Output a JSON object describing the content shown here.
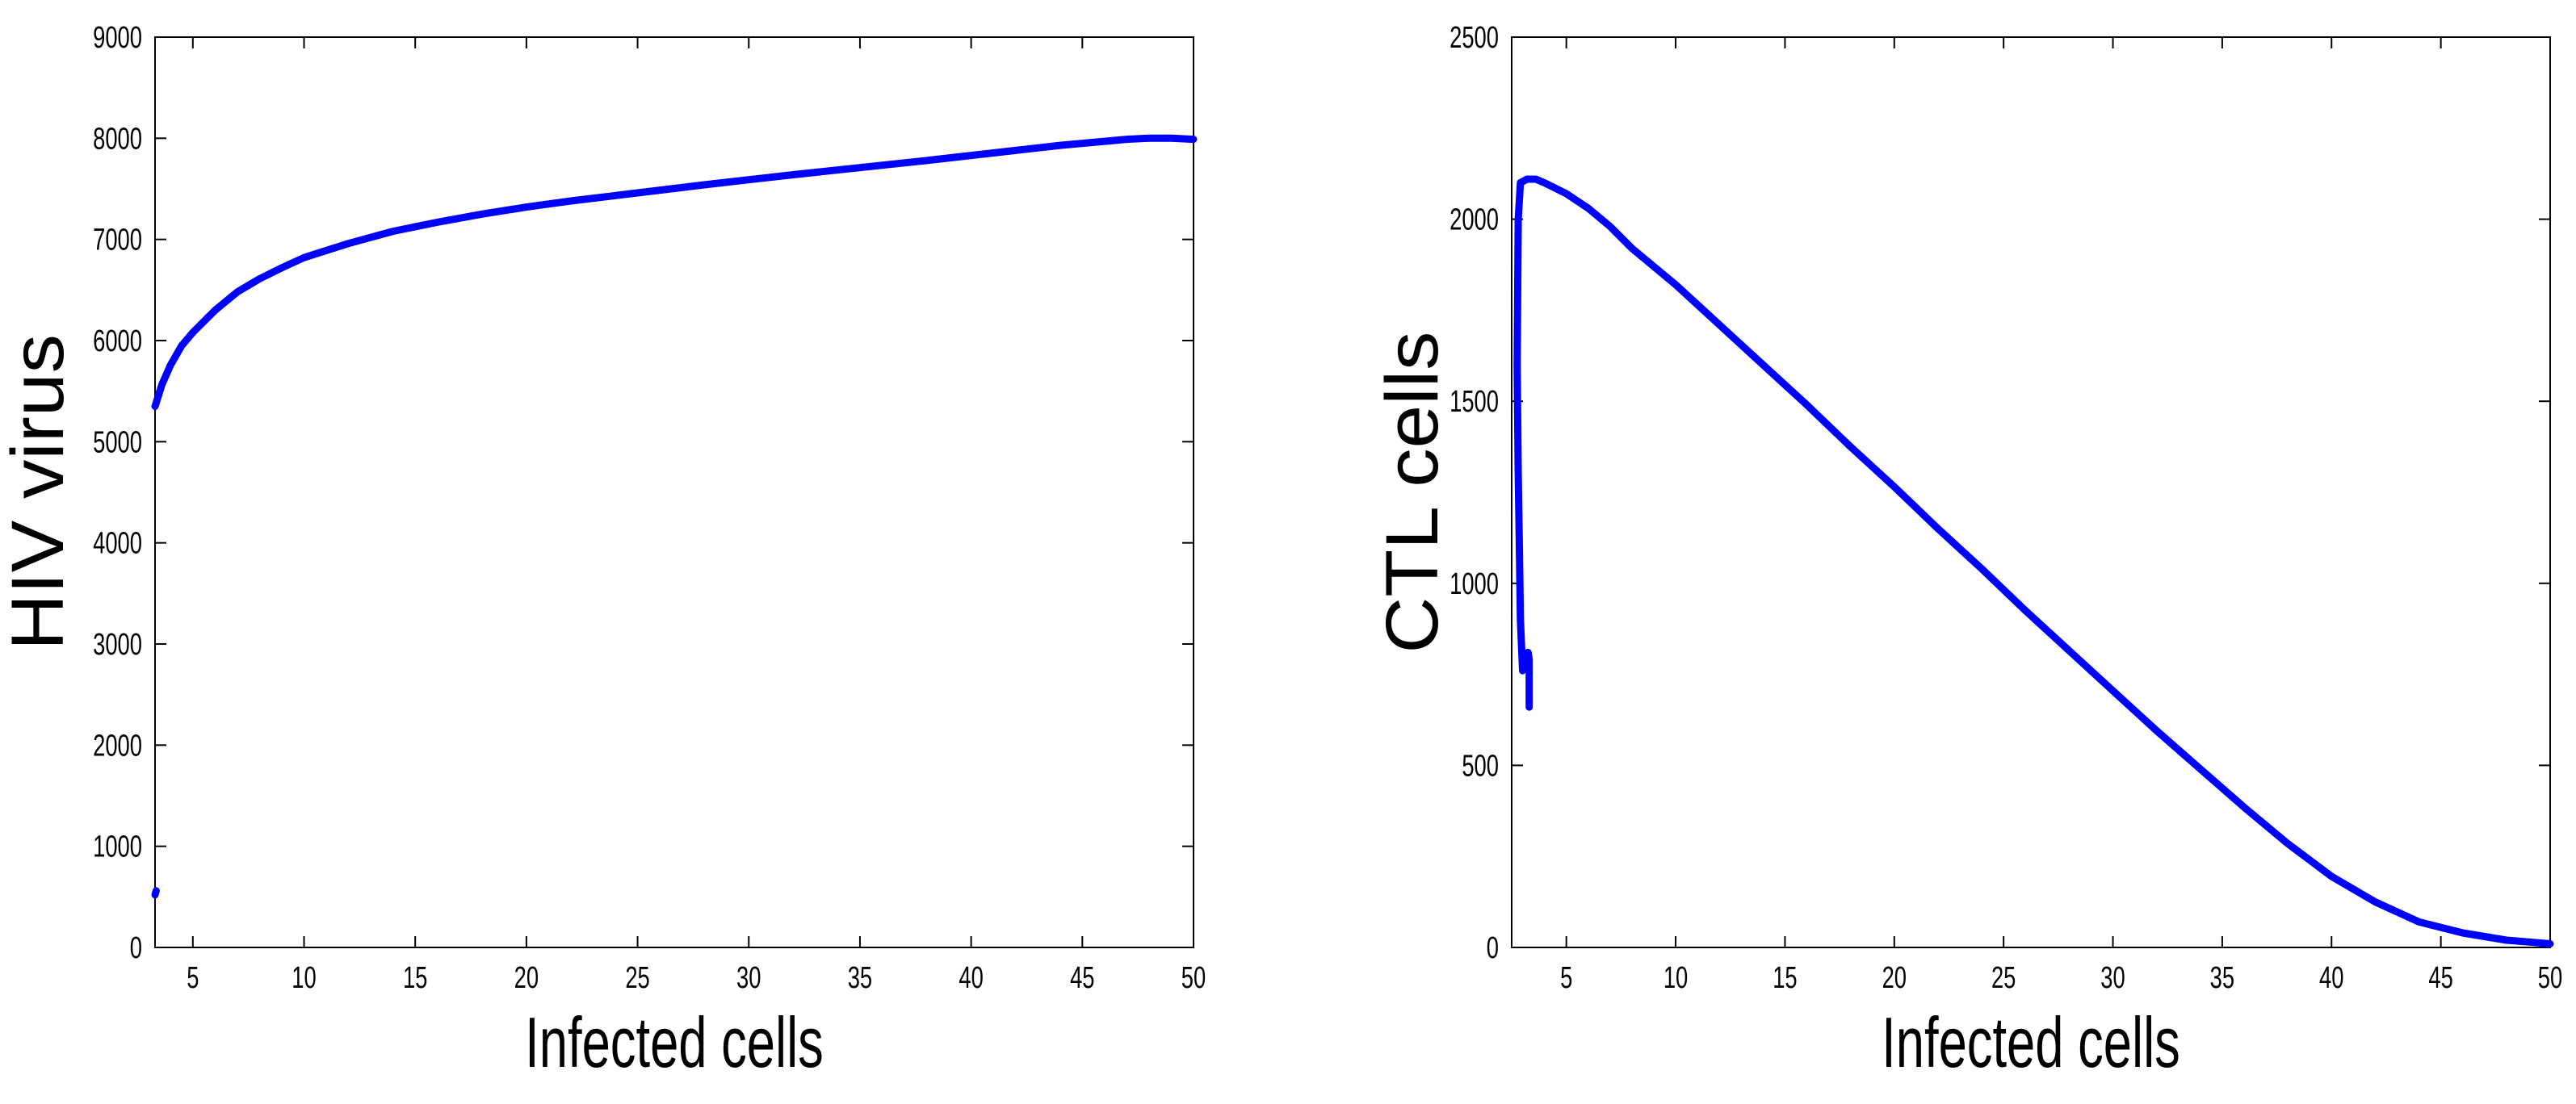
{
  "chart_data": [
    {
      "type": "line",
      "title": "",
      "xlabel": "Infected cells",
      "ylabel": "HIV virus",
      "xlim": [
        3.3,
        50
      ],
      "ylim": [
        0,
        9000
      ],
      "xticks": [
        5,
        10,
        15,
        20,
        25,
        30,
        35,
        40,
        45,
        50
      ],
      "yticks": [
        0,
        1000,
        2000,
        3000,
        4000,
        5000,
        6000,
        7000,
        8000,
        9000
      ],
      "grid": false,
      "color": "#0000ff",
      "series": [
        {
          "x": [
            3.3,
            3.4,
            3.6,
            4,
            4.5,
            5,
            6,
            7,
            8,
            9,
            10,
            12,
            14,
            16,
            18,
            20,
            22,
            25,
            28,
            30,
            32,
            35,
            38,
            40,
            42,
            44,
            46,
            47,
            48,
            49,
            50
          ],
          "y": [
            5350,
            5420,
            5560,
            5760,
            5950,
            6080,
            6300,
            6480,
            6610,
            6720,
            6820,
            6960,
            7080,
            7170,
            7250,
            7320,
            7380,
            7460,
            7540,
            7590,
            7640,
            7710,
            7780,
            7830,
            7880,
            7930,
            7970,
            7990,
            8000,
            8000,
            7990
          ]
        },
        {
          "x": [
            3.3,
            3.35
          ],
          "y": [
            520,
            560
          ]
        }
      ]
    },
    {
      "type": "line",
      "title": "",
      "xlabel": "Infected cells",
      "ylabel": "CTL cells",
      "xlim": [
        2.5,
        50
      ],
      "ylim": [
        0,
        2500
      ],
      "xticks": [
        5,
        10,
        15,
        20,
        25,
        30,
        35,
        40,
        45,
        50
      ],
      "yticks": [
        0,
        500,
        1000,
        1500,
        2000,
        2500
      ],
      "grid": false,
      "color": "#0000ff",
      "series": [
        {
          "x": [
            3.3,
            3.3,
            3.25,
            3.2,
            3.0,
            2.9,
            2.85,
            2.8,
            2.75,
            2.8,
            2.9,
            3.2,
            3.6,
            4.0,
            5.0,
            6.0,
            7.0,
            8.0,
            10,
            12,
            14,
            16,
            18,
            20,
            22,
            24,
            26,
            28,
            30,
            32,
            34,
            36,
            38,
            40,
            42,
            44,
            46,
            48,
            49,
            50
          ],
          "y": [
            660,
            790,
            810,
            790,
            760,
            900,
            1100,
            1300,
            1600,
            2000,
            2100,
            2110,
            2110,
            2100,
            2070,
            2030,
            1980,
            1920,
            1820,
            1710,
            1600,
            1490,
            1375,
            1265,
            1150,
            1040,
            925,
            815,
            705,
            595,
            490,
            385,
            285,
            195,
            125,
            70,
            40,
            20,
            15,
            10
          ]
        }
      ]
    }
  ]
}
